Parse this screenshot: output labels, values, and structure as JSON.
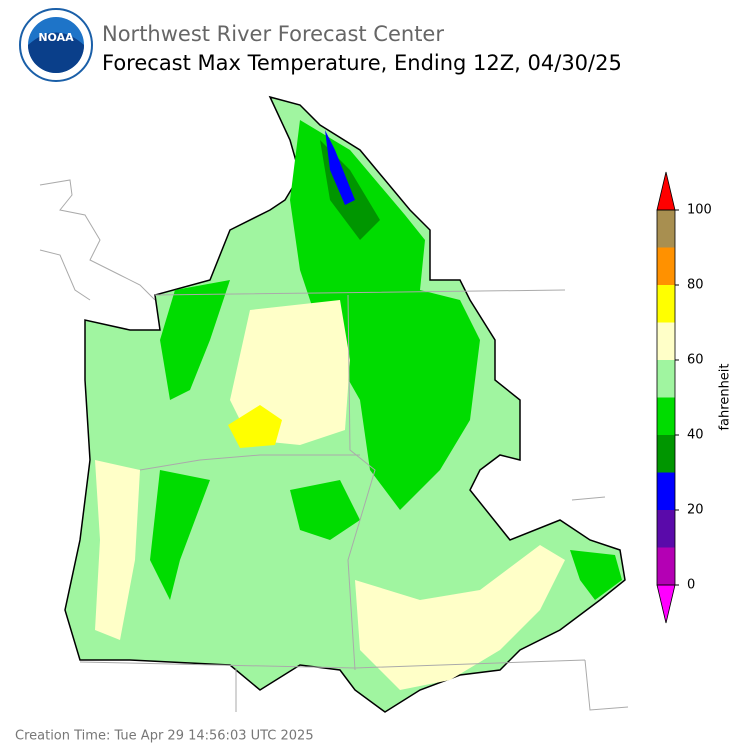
{
  "header": {
    "logo_text": "NOAA",
    "title": "Northwest River Forecast Center",
    "subtitle": "Forecast Max Temperature, Ending 12Z, 04/30/25"
  },
  "colorbar": {
    "label": "fahrenheit",
    "lim": [
      0,
      100
    ],
    "ticks": [
      0,
      20,
      40,
      60,
      80,
      100
    ],
    "bins": [
      0,
      10,
      20,
      30,
      40,
      50,
      60,
      70,
      80,
      90,
      100
    ],
    "colors": [
      "#b400b4",
      "#5a0aaa",
      "#0000ff",
      "#009600",
      "#00dc00",
      "#a0f5a0",
      "#ffffc8",
      "#ffff00",
      "#ff9100",
      "#a88f50"
    ],
    "under_color": "#ff00ff",
    "over_color": "#ff0000"
  },
  "footer": {
    "creation_time": "Creation Time: Tue Apr 29 14:56:03 UTC 2025"
  }
}
